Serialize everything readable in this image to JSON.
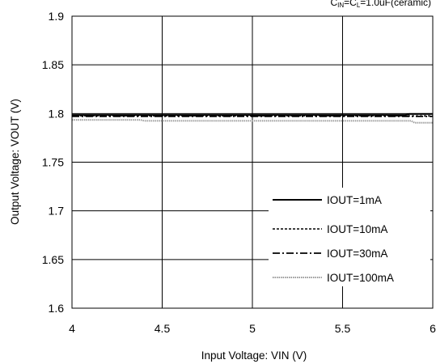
{
  "chart_data": {
    "type": "line",
    "annotation": {
      "c_in": "C",
      "c_in_sub": "IN",
      "eq1": "=C",
      "c_l_sub": "L",
      "eq2": "=1.0uF(ceramic)"
    },
    "xlabel": "Input Voltage: VIN (V)",
    "ylabel": "Output Voltage: VOUT (V)",
    "xlim": [
      4,
      6
    ],
    "ylim": [
      1.6,
      1.9
    ],
    "x_ticks": [
      4,
      4.5,
      5,
      5.5,
      6
    ],
    "x_tick_labels": [
      "4",
      "4.5",
      "5",
      "5.5",
      "6"
    ],
    "y_ticks": [
      1.6,
      1.65,
      1.7,
      1.75,
      1.8,
      1.85,
      1.9
    ],
    "y_tick_labels": [
      "1.6",
      "1.65",
      "1.7",
      "1.75",
      "1.8",
      "1.85",
      "1.9"
    ],
    "grid": true,
    "legend_position": "bottom-right",
    "series": [
      {
        "name": "IOUT=1mA",
        "style": "solid",
        "color": "#000000",
        "x": [
          4,
          5.85,
          5.87,
          6
        ],
        "y": [
          1.7985,
          1.7985,
          1.7995,
          1.7995
        ]
      },
      {
        "name": "IOUT=10mA",
        "style": "dotted",
        "color": "#000000",
        "x": [
          4,
          6
        ],
        "y": [
          1.7975,
          1.7975
        ]
      },
      {
        "name": "IOUT=30mA",
        "style": "dashdot",
        "color": "#000000",
        "x": [
          4,
          6
        ],
        "y": [
          1.797,
          1.797
        ]
      },
      {
        "name": "IOUT=100mA",
        "style": "dotted-gray",
        "color": "#9a9a9a",
        "x": [
          4,
          4.38,
          4.4,
          5.88,
          5.9,
          6
        ],
        "y": [
          1.7935,
          1.7935,
          1.7925,
          1.7925,
          1.7905,
          1.7905
        ]
      }
    ]
  }
}
